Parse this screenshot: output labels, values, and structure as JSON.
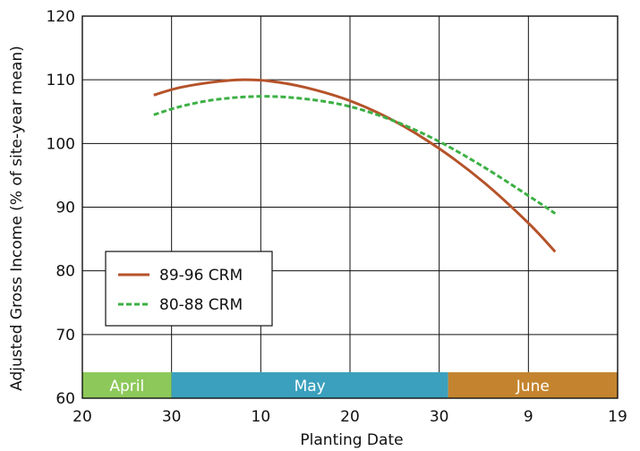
{
  "chart_data": {
    "type": "line",
    "title": "",
    "xlabel": "Planting Date",
    "ylabel": "Adjusted Gross Income (% of site-year mean)",
    "ylim": [
      60,
      120
    ],
    "yticks": [
      60,
      70,
      80,
      90,
      100,
      110,
      120
    ],
    "xlim": [
      "April 20",
      "June 19"
    ],
    "xticks": [
      {
        "date": "April 20",
        "label": "20"
      },
      {
        "date": "April 30",
        "label": "30"
      },
      {
        "date": "May 10",
        "label": "10"
      },
      {
        "date": "May 20",
        "label": "20"
      },
      {
        "date": "May 30",
        "label": "30"
      },
      {
        "date": "June 9",
        "label": "9"
      },
      {
        "date": "June 19",
        "label": "19"
      }
    ],
    "grid": true,
    "legend_position": "lower-left",
    "month_bands": [
      {
        "label": "April",
        "start": "April 20",
        "end": "April 30",
        "color": "#8dc85a"
      },
      {
        "label": "May",
        "start": "April 30",
        "end": "May 31",
        "color": "#3ba0bd"
      },
      {
        "label": "June",
        "start": "May 31",
        "end": "June 19",
        "color": "#c4842f"
      }
    ],
    "series": [
      {
        "name": "89-96 CRM",
        "color": "#b5532a",
        "style": "solid",
        "points": [
          {
            "x": "April 28",
            "y": 107.6
          },
          {
            "x": "May 1",
            "y": 108.8
          },
          {
            "x": "May 5",
            "y": 109.7
          },
          {
            "x": "May 8",
            "y": 110.0
          },
          {
            "x": "May 11",
            "y": 109.8
          },
          {
            "x": "May 15",
            "y": 108.8
          },
          {
            "x": "May 20",
            "y": 106.7
          },
          {
            "x": "May 25",
            "y": 103.5
          },
          {
            "x": "May 30",
            "y": 99.2
          },
          {
            "x": "June 4",
            "y": 93.9
          },
          {
            "x": "June 9",
            "y": 87.5
          },
          {
            "x": "June 12",
            "y": 83.0
          }
        ]
      },
      {
        "name": "80-88 CRM",
        "color": "#3cb044",
        "style": "dashed",
        "points": [
          {
            "x": "April 28",
            "y": 104.5
          },
          {
            "x": "May 1",
            "y": 105.8
          },
          {
            "x": "May 5",
            "y": 106.9
          },
          {
            "x": "May 10",
            "y": 107.4
          },
          {
            "x": "May 15",
            "y": 107.0
          },
          {
            "x": "May 20",
            "y": 105.8
          },
          {
            "x": "May 25",
            "y": 103.5
          },
          {
            "x": "May 30",
            "y": 100.3
          },
          {
            "x": "June 4",
            "y": 96.3
          },
          {
            "x": "June 9",
            "y": 91.8
          },
          {
            "x": "June 12",
            "y": 89.0
          }
        ]
      }
    ]
  }
}
